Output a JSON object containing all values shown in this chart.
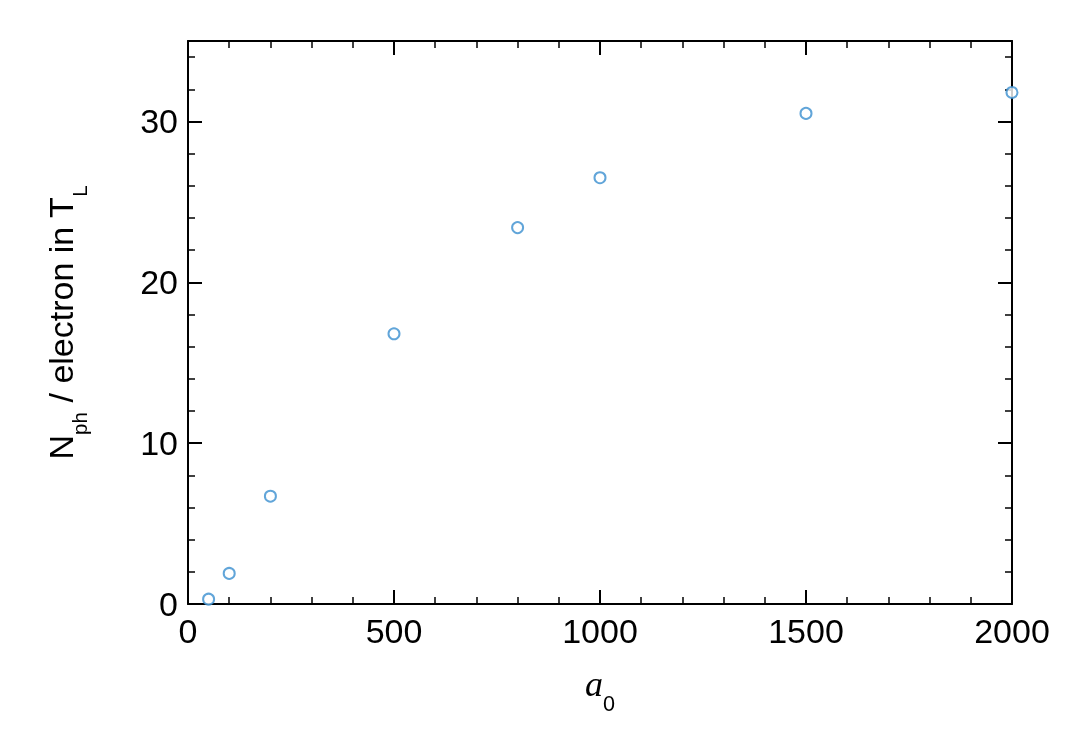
{
  "chart_data": {
    "type": "scatter",
    "xlabel": "a$_{0}$",
    "ylabel": "N$_{ph}$ / electron in T$_{L}$",
    "x": [
      50,
      100,
      200,
      500,
      800,
      1000,
      1500,
      2000
    ],
    "values": [
      0.3,
      1.9,
      6.7,
      16.8,
      23.4,
      26.5,
      30.5,
      31.8
    ],
    "color": "#3a8fd0",
    "marker": "circle",
    "grid": false,
    "xlim": [
      0,
      2000
    ],
    "xticks": [
      0,
      500,
      1000,
      1500,
      2000
    ],
    "ylim": [
      0,
      35
    ],
    "yticks": [
      0,
      10,
      20,
      30
    ]
  }
}
